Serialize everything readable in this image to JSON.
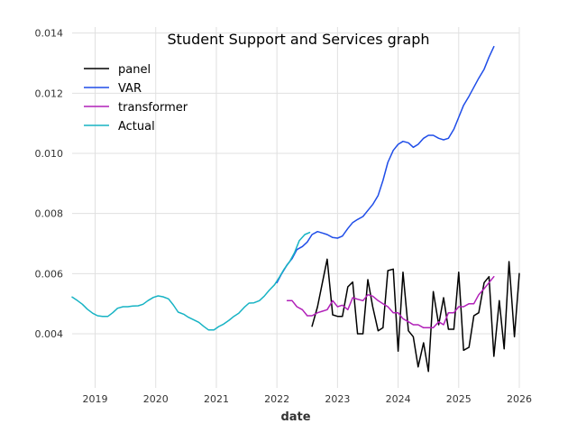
{
  "chart_data": {
    "type": "line",
    "title": "Student Support and Services graph",
    "xlabel": "date",
    "ylabel": "",
    "x_range": [
      2018.62,
      2026.0
    ],
    "ylim": [
      0.0022,
      0.0142
    ],
    "x_ticks": [
      2019,
      2020,
      2021,
      2022,
      2023,
      2024,
      2025,
      2026
    ],
    "x_tick_labels": [
      "2019",
      "2020",
      "2021",
      "2022",
      "2023",
      "2024",
      "2025",
      "2026"
    ],
    "y_ticks": [
      0.004,
      0.006,
      0.008,
      0.01,
      0.012,
      0.014
    ],
    "y_tick_labels": [
      "0.004",
      "0.006",
      "0.008",
      "0.010",
      "0.012",
      "0.014"
    ],
    "grid": true,
    "legend_position": "top-left",
    "series": [
      {
        "name": "panel",
        "color": "#000000",
        "x": [
          2022.58,
          2022.67,
          2022.75,
          2022.83,
          2022.92,
          2023.0,
          2023.08,
          2023.17,
          2023.25,
          2023.33,
          2023.42,
          2023.5,
          2023.58,
          2023.67,
          2023.75,
          2023.83,
          2023.92,
          2024.0,
          2024.08,
          2024.17,
          2024.25,
          2024.33,
          2024.42,
          2024.5,
          2024.58,
          2024.67,
          2024.75,
          2024.83,
          2024.92,
          2025.0,
          2025.08,
          2025.17,
          2025.25,
          2025.33,
          2025.42,
          2025.5,
          2025.58,
          2025.67,
          2025.75,
          2025.83,
          2025.92,
          2026.0
        ],
        "values": [
          0.00425,
          0.0049,
          0.0057,
          0.00648,
          0.00463,
          0.00458,
          0.00458,
          0.00556,
          0.00572,
          0.004,
          0.004,
          0.0058,
          0.0049,
          0.0041,
          0.0042,
          0.0061,
          0.00615,
          0.00342,
          0.00605,
          0.0041,
          0.0039,
          0.0029,
          0.0037,
          0.00275,
          0.0054,
          0.0043,
          0.0052,
          0.00415,
          0.00415,
          0.00605,
          0.00345,
          0.00355,
          0.0046,
          0.0047,
          0.0057,
          0.0059,
          0.00325,
          0.0051,
          0.0035,
          0.0064,
          0.0039,
          0.006
        ]
      },
      {
        "name": "VAR",
        "color": "#1f4de8",
        "x": [
          2022.0,
          2022.08,
          2022.17,
          2022.25,
          2022.33,
          2022.42,
          2022.5,
          2022.58,
          2022.67,
          2022.75,
          2022.83,
          2022.92,
          2023.0,
          2023.08,
          2023.17,
          2023.25,
          2023.33,
          2023.42,
          2023.5,
          2023.58,
          2023.67,
          2023.75,
          2023.83,
          2023.92,
          2024.0,
          2024.08,
          2024.17,
          2024.25,
          2024.33,
          2024.42,
          2024.5,
          2024.58,
          2024.67,
          2024.75,
          2024.83,
          2024.92,
          2025.0,
          2025.08,
          2025.17,
          2025.25,
          2025.33,
          2025.42,
          2025.5,
          2025.58
        ],
        "values": [
          0.0057,
          0.006,
          0.0063,
          0.0065,
          0.0068,
          0.0069,
          0.00705,
          0.0073,
          0.0074,
          0.00735,
          0.0073,
          0.0072,
          0.00718,
          0.00725,
          0.0075,
          0.0077,
          0.0078,
          0.0079,
          0.0081,
          0.0083,
          0.0086,
          0.0091,
          0.0097,
          0.0101,
          0.0103,
          0.0104,
          0.01035,
          0.0102,
          0.0103,
          0.0105,
          0.0106,
          0.0106,
          0.0105,
          0.01045,
          0.0105,
          0.0108,
          0.0112,
          0.0116,
          0.0119,
          0.0122,
          0.0125,
          0.0128,
          0.0132,
          0.01355
        ]
      },
      {
        "name": "transformer",
        "color": "#b120b8",
        "x": [
          2022.17,
          2022.25,
          2022.33,
          2022.42,
          2022.5,
          2022.58,
          2022.67,
          2022.75,
          2022.83,
          2022.92,
          2023.0,
          2023.08,
          2023.17,
          2023.25,
          2023.33,
          2023.42,
          2023.5,
          2023.58,
          2023.67,
          2023.75,
          2023.83,
          2023.92,
          2024.0,
          2024.08,
          2024.17,
          2024.25,
          2024.33,
          2024.42,
          2024.5,
          2024.58,
          2024.67,
          2024.75,
          2024.83,
          2024.92,
          2025.0,
          2025.08,
          2025.17,
          2025.25,
          2025.33,
          2025.42,
          2025.5,
          2025.58
        ],
        "values": [
          0.0051,
          0.0051,
          0.0049,
          0.0048,
          0.0046,
          0.0046,
          0.0047,
          0.00475,
          0.0048,
          0.0051,
          0.0049,
          0.00495,
          0.0048,
          0.0052,
          0.00515,
          0.0051,
          0.0053,
          0.00525,
          0.0051,
          0.005,
          0.0049,
          0.0047,
          0.0047,
          0.0045,
          0.0044,
          0.0043,
          0.0043,
          0.0042,
          0.0042,
          0.0042,
          0.0044,
          0.0043,
          0.0047,
          0.0047,
          0.0049,
          0.0049,
          0.005,
          0.005,
          0.0053,
          0.0055,
          0.0057,
          0.0059
        ]
      },
      {
        "name": "Actual",
        "color": "#17b3c4",
        "x": [
          2018.62,
          2018.71,
          2018.79,
          2018.87,
          2018.96,
          2019.04,
          2019.12,
          2019.21,
          2019.29,
          2019.37,
          2019.46,
          2019.54,
          2019.62,
          2019.71,
          2019.79,
          2019.87,
          2019.96,
          2020.04,
          2020.12,
          2020.21,
          2020.29,
          2020.37,
          2020.46,
          2020.54,
          2020.62,
          2020.71,
          2020.79,
          2020.87,
          2020.96,
          2021.04,
          2021.12,
          2021.21,
          2021.29,
          2021.37,
          2021.46,
          2021.54,
          2021.62,
          2021.71,
          2021.79,
          2021.87,
          2021.96,
          2022.04,
          2022.12,
          2022.21,
          2022.29,
          2022.37,
          2022.46,
          2022.54
        ],
        "values": [
          0.00522,
          0.0051,
          0.00498,
          0.00482,
          0.00468,
          0.0046,
          0.00458,
          0.00458,
          0.0047,
          0.00485,
          0.0049,
          0.0049,
          0.00492,
          0.00493,
          0.00498,
          0.0051,
          0.00521,
          0.00526,
          0.00523,
          0.00516,
          0.00496,
          0.00472,
          0.00465,
          0.00455,
          0.00447,
          0.00438,
          0.00425,
          0.00413,
          0.00413,
          0.00424,
          0.00432,
          0.00445,
          0.00458,
          0.00468,
          0.00488,
          0.00502,
          0.00503,
          0.0051,
          0.00525,
          0.00544,
          0.00563,
          0.00588,
          0.00615,
          0.0064,
          0.0067,
          0.0071,
          0.0073,
          0.00737
        ]
      }
    ]
  }
}
